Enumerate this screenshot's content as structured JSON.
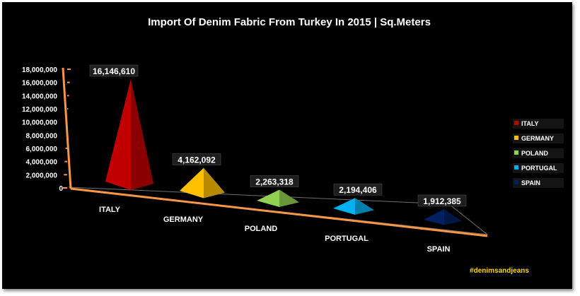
{
  "chart_data": {
    "type": "bar",
    "title": "Import Of Denim Fabric From Turkey In 2015 | Sq.Meters",
    "categories": [
      "ITALY",
      "GERMANY",
      "POLAND",
      "PORTUGAL",
      "SPAIN"
    ],
    "values": [
      16146610,
      4162092,
      2263318,
      2194406,
      1912385
    ],
    "value_labels": [
      "16,146,610",
      "4,162,092",
      "2,263,318",
      "2,194,406",
      "1,912,385"
    ],
    "colors": [
      "#c00000",
      "#ffc000",
      "#92d050",
      "#00b0f0",
      "#002060"
    ],
    "ylim": [
      0,
      18000000
    ],
    "yticks": [
      "0",
      "2,000,000",
      "4,000,000",
      "6,000,000",
      "8,000,000",
      "10,000,000",
      "12,000,000",
      "14,000,000",
      "16,000,000",
      "18,000,000"
    ],
    "legend": {
      "position": "right",
      "entries": [
        "ITALY",
        "GERMANY",
        "POLAND",
        "PORTUGAL",
        "SPAIN"
      ]
    },
    "grid": false,
    "shape": "pyramid-3d",
    "xlabel": "",
    "ylabel": ""
  },
  "watermark": "#denimsandjeans",
  "style": {
    "background": "#000000",
    "axis_color": "#f79646",
    "text_color": "#ffffff",
    "watermark_color": "#ffd800"
  }
}
